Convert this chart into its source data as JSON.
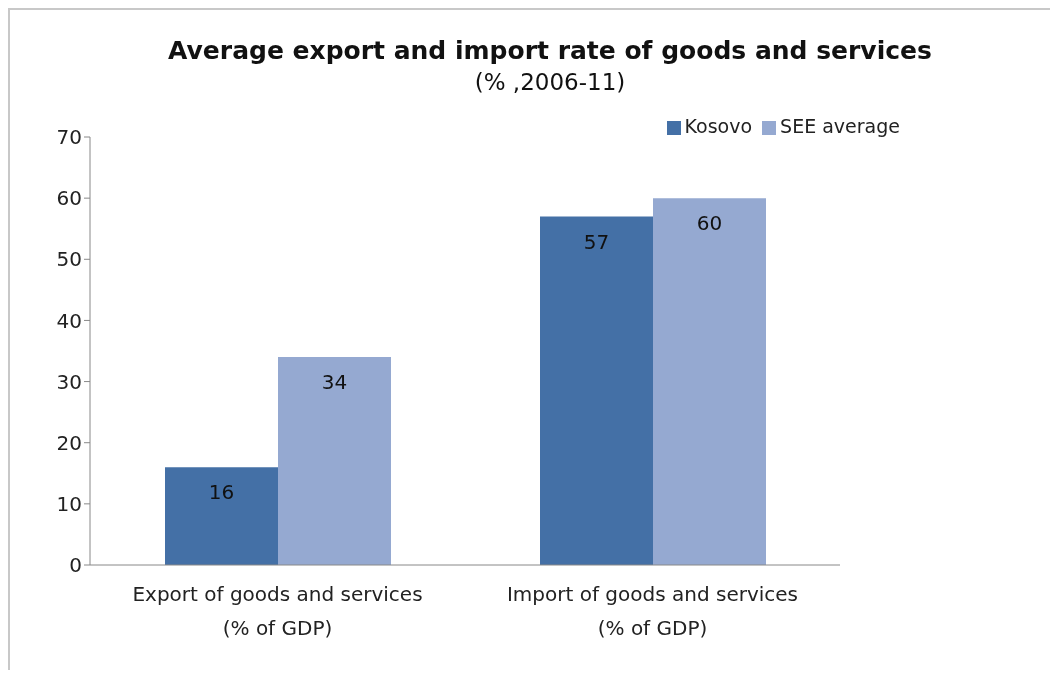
{
  "chart_data": {
    "type": "bar",
    "title": "Average export and import rate of goods and services",
    "subtitle": "(% ,2006-11)",
    "categories": [
      "Export of goods and services (% of GDP)",
      "Import of goods and services (% of GDP)"
    ],
    "series": [
      {
        "name": "Kosovo",
        "color": "#4470a6",
        "values": [
          16,
          57
        ]
      },
      {
        "name": "SEE average",
        "color": "#95a9d1",
        "values": [
          34,
          60
        ]
      }
    ],
    "ylim": [
      0,
      70
    ],
    "yticks": [
      0,
      10,
      20,
      30,
      40,
      50,
      60,
      70
    ],
    "grid": false,
    "legend": "top right",
    "data_labels": true
  }
}
